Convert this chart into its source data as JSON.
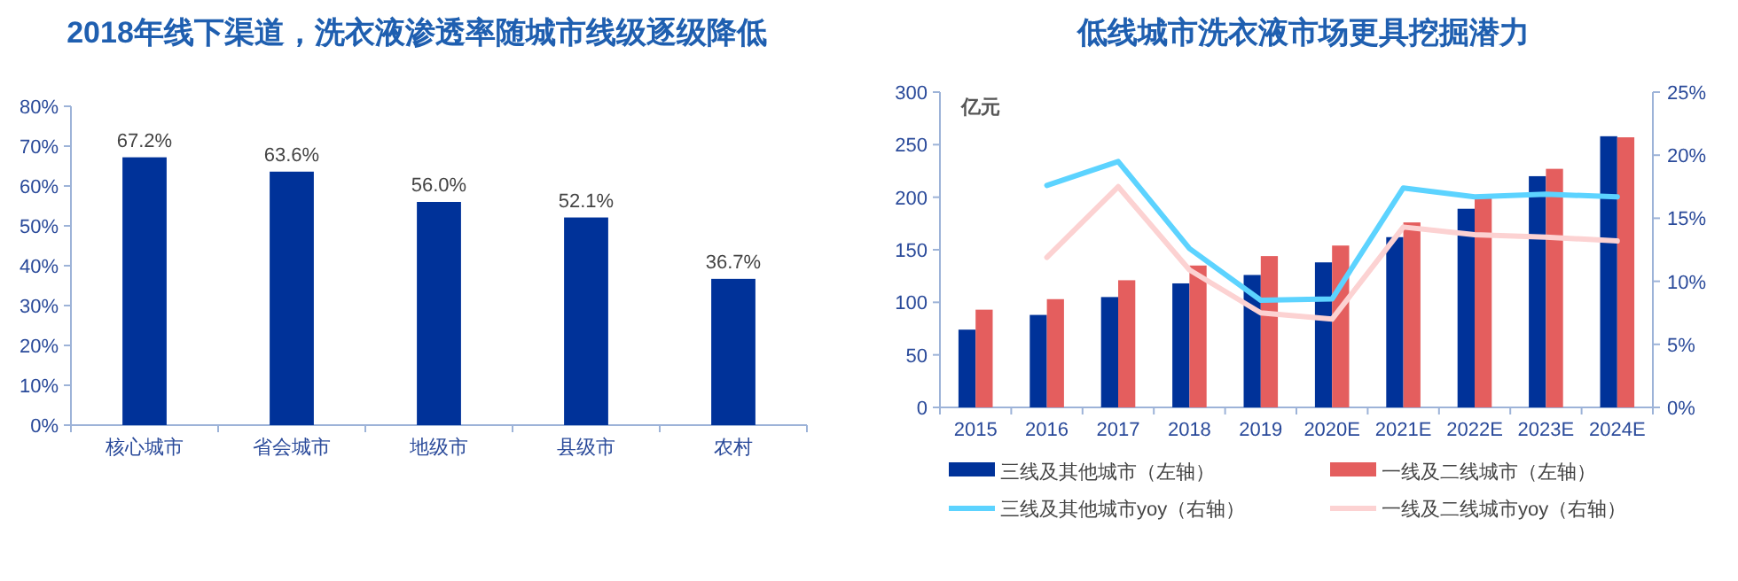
{
  "chart_data": [
    {
      "type": "bar",
      "title": "2018年线下渠道，洗衣液渗透率随城市线级逐级降低",
      "categories": [
        "核心城市",
        "省会城市",
        "地级市",
        "县级市",
        "农村"
      ],
      "series": [
        {
          "color": "#003299",
          "values": [
            67.2,
            63.6,
            56.0,
            52.1,
            36.7
          ]
        }
      ],
      "value_labels": [
        "67.2%",
        "63.6%",
        "56.0%",
        "52.1%",
        "36.7%"
      ],
      "ylim": [
        0,
        80
      ],
      "yticks": [
        {
          "value": 0,
          "label": "0%"
        },
        {
          "value": 10,
          "label": "10%"
        },
        {
          "value": 20,
          "label": "20%"
        },
        {
          "value": 30,
          "label": "30%"
        },
        {
          "value": 40,
          "label": "40%"
        },
        {
          "value": 50,
          "label": "50%"
        },
        {
          "value": 60,
          "label": "60%"
        },
        {
          "value": 70,
          "label": "70%"
        },
        {
          "value": 80,
          "label": "80%"
        }
      ],
      "grid": false,
      "legend": false
    },
    {
      "type": "bar",
      "title": "低线城市洗衣液市场更具挖掘潜力",
      "ylabel": "亿元",
      "categories": [
        "2015",
        "2016",
        "2017",
        "2018",
        "2019",
        "2020E",
        "2021E",
        "2022E",
        "2023E",
        "2024E"
      ],
      "series": [
        {
          "name": "三线及其他城市（左轴）",
          "type": "bar",
          "color": "#003299",
          "values": [
            74,
            88,
            105,
            118,
            126,
            138,
            162,
            189,
            220,
            258
          ]
        },
        {
          "name": "一线及二线城市（左轴）",
          "type": "bar",
          "color": "#e45e5e",
          "values": [
            93,
            103,
            121,
            135,
            144,
            154,
            176,
            200,
            227,
            257
          ]
        },
        {
          "name": "三线及其他城市yoy（右轴）",
          "type": "line",
          "axis": "y2",
          "color": "#5cd3ff",
          "values": [
            null,
            17.6,
            19.5,
            12.6,
            8.5,
            8.6,
            17.4,
            16.7,
            16.9,
            16.7
          ]
        },
        {
          "name": "一线及二线城市yoy（右轴）",
          "type": "line",
          "axis": "y2",
          "color": "#fcd2d2",
          "values": [
            null,
            11.9,
            17.5,
            10.9,
            7.5,
            7.0,
            14.3,
            13.7,
            13.5,
            13.2
          ]
        }
      ],
      "ylim": [
        0,
        300
      ],
      "yticks": [
        0,
        50,
        100,
        150,
        200,
        250,
        300
      ],
      "y2lim": [
        0,
        25
      ],
      "y2ticks": [
        {
          "value": 0,
          "label": "0%"
        },
        {
          "value": 5,
          "label": "5%"
        },
        {
          "value": 10,
          "label": "10%"
        },
        {
          "value": 15,
          "label": "15%"
        },
        {
          "value": 20,
          "label": "20%"
        },
        {
          "value": 25,
          "label": "25%"
        }
      ],
      "grid": false,
      "legend": "bottom"
    }
  ]
}
